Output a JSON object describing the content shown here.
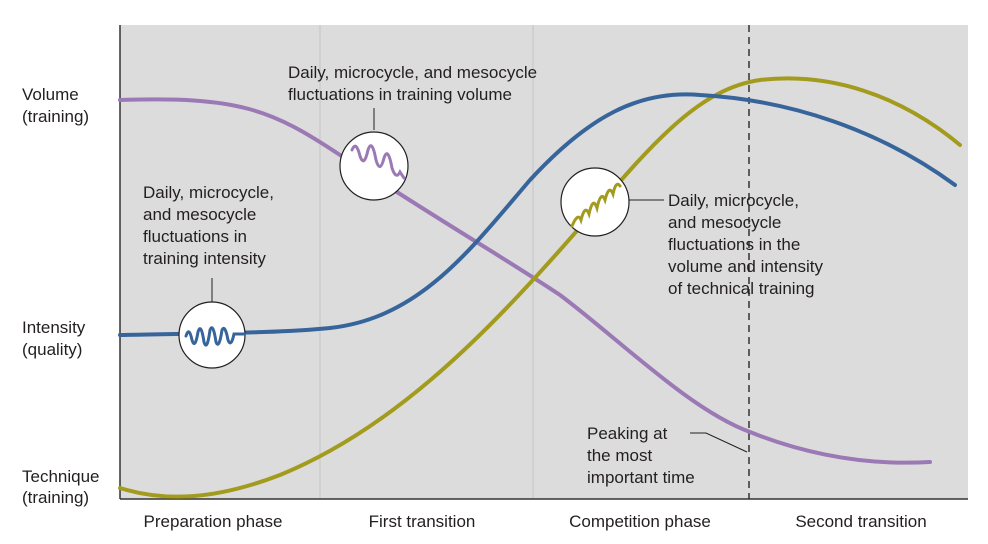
{
  "y_axis_labels": [
    {
      "id": "volume",
      "lines": [
        "Volume",
        "(training)"
      ]
    },
    {
      "id": "intensity",
      "lines": [
        "Intensity",
        "(quality)"
      ]
    },
    {
      "id": "technique",
      "lines": [
        "Technique",
        "(training)"
      ]
    }
  ],
  "phases": [
    "Preparation phase",
    "First transition",
    "Competition phase",
    "Second transition"
  ],
  "annotations": {
    "volume_fluctuations": [
      "Daily, microcycle, and mesocycle",
      "fluctuations in training volume"
    ],
    "intensity_fluctuations": [
      "Daily, microcycle,",
      "and mesocycle",
      "fluctuations in",
      "training intensity"
    ],
    "technical_fluctuations": [
      "Daily, microcycle,",
      "and mesocycle",
      "fluctuations in the",
      "volume and intensity",
      "of technical training"
    ],
    "peaking": [
      "Peaking at",
      "the most",
      "important time"
    ]
  },
  "colors": {
    "background": "#dcdcdc",
    "volume": "#9b79b5",
    "intensity": "#37659b",
    "technique": "#a39b1d",
    "divider": "#c4c4c4",
    "axis": "#333333"
  }
}
